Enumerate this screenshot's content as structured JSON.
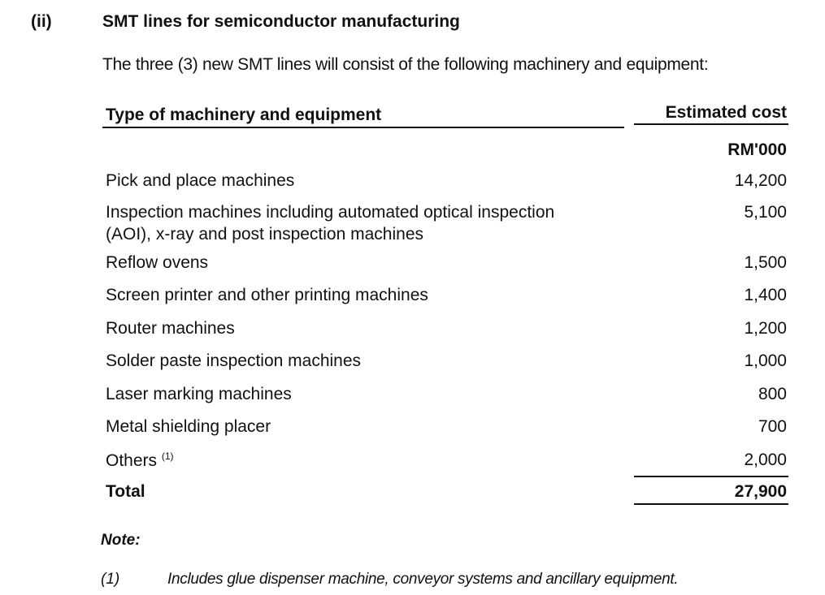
{
  "section": {
    "number": "(ii)",
    "title": "SMT lines for semiconductor manufacturing"
  },
  "intro": "The three (3) new SMT lines will consist of the following machinery and equipment:",
  "table": {
    "col1_header": "Type of machinery and equipment",
    "col2_header": "Estimated cost",
    "col2_unit": "RM'000",
    "rows": [
      {
        "label": "Pick and place machines",
        "value": "14,200"
      },
      {
        "label": "Inspection machines including automated optical inspection",
        "label2": "(AOI), x-ray and post inspection machines",
        "value": "5,100"
      },
      {
        "label": "Reflow ovens",
        "value": "1,500"
      },
      {
        "label": "Screen printer and other printing machines",
        "value": "1,400"
      },
      {
        "label": "Router machines",
        "value": "1,200"
      },
      {
        "label": "Solder paste inspection machines",
        "value": "1,000"
      },
      {
        "label": "Laser marking machines",
        "value": "800"
      },
      {
        "label": "Metal shielding placer",
        "value": "700"
      },
      {
        "label": "Others",
        "sup": "(1)",
        "value": "2,000"
      }
    ],
    "total_label": "Total",
    "total_value": "27,900"
  },
  "note": {
    "heading": "Note:",
    "marker": "(1)",
    "text": "Includes glue dispenser machine, conveyor systems and ancillary equipment."
  }
}
